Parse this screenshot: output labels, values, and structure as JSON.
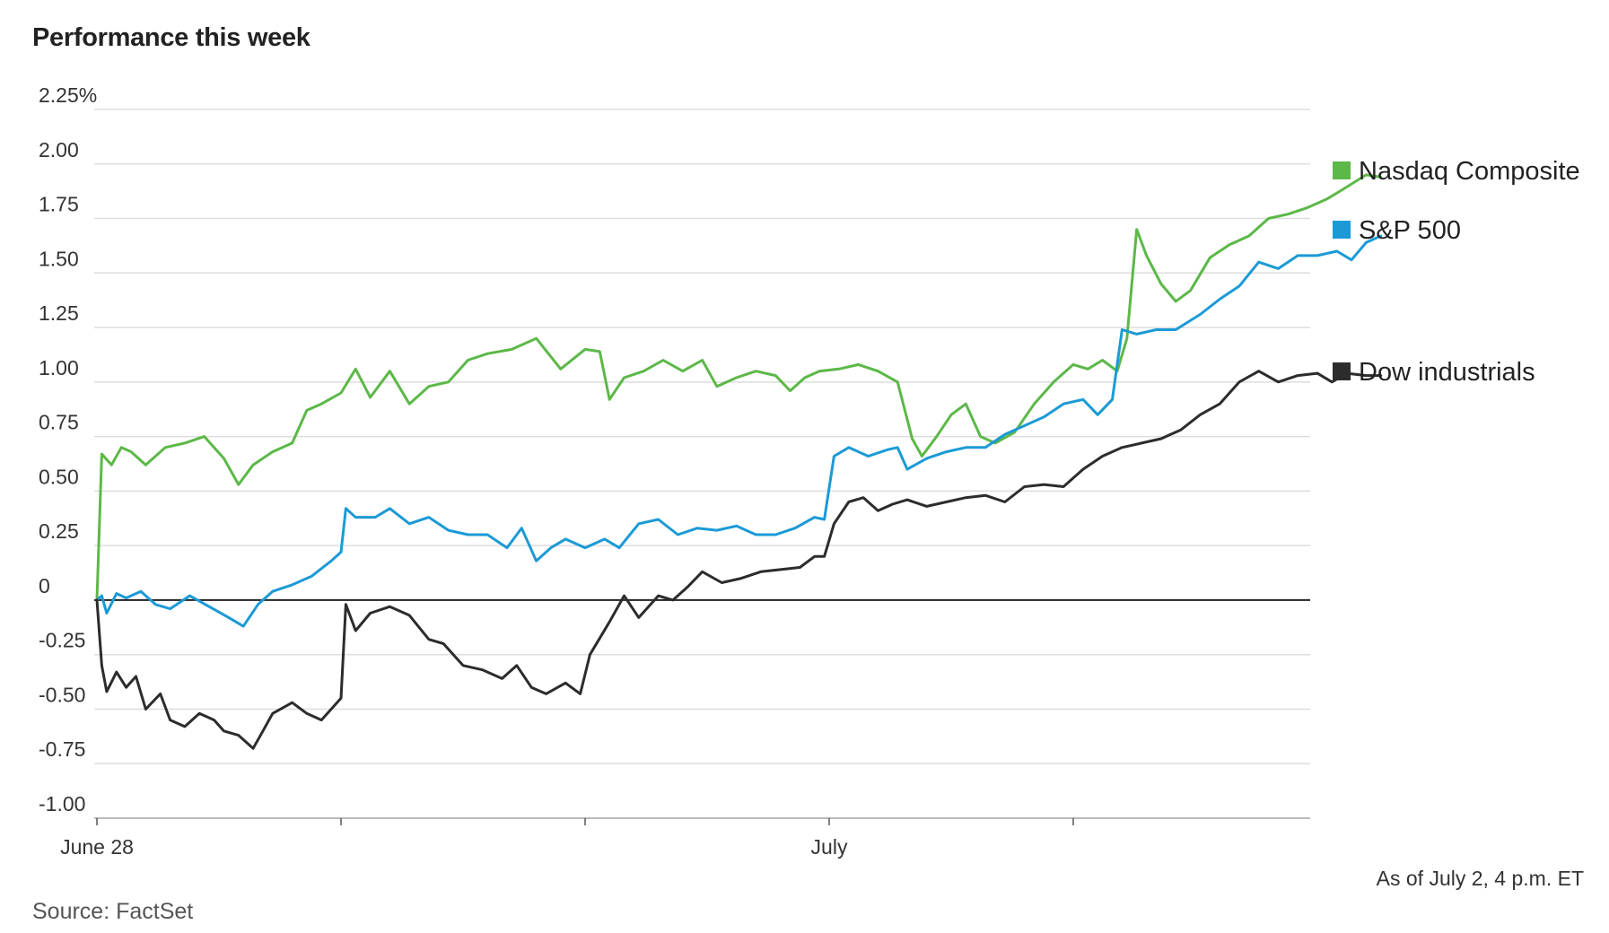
{
  "chart_data": {
    "type": "line",
    "title": "Performance this week",
    "note": "As of July 2, 4 p.m. ET",
    "source": "Source: FactSet",
    "y_ticks": [
      {
        "value": 2.25,
        "label": "2.25%"
      },
      {
        "value": 2.0,
        "label": "2.00"
      },
      {
        "value": 1.75,
        "label": "1.75"
      },
      {
        "value": 1.5,
        "label": "1.50"
      },
      {
        "value": 1.25,
        "label": "1.25"
      },
      {
        "value": 1.0,
        "label": "1.00"
      },
      {
        "value": 0.75,
        "label": "0.75"
      },
      {
        "value": 0.5,
        "label": "0.50"
      },
      {
        "value": 0.25,
        "label": "0.25"
      },
      {
        "value": 0,
        "label": "0"
      },
      {
        "value": -0.25,
        "label": "-0.25"
      },
      {
        "value": -0.5,
        "label": "-0.50"
      },
      {
        "value": -0.75,
        "label": "-0.75"
      },
      {
        "value": -1.0,
        "label": "-1.00"
      }
    ],
    "ylim": [
      -1.0,
      2.25
    ],
    "xlim": [
      0,
      5
    ],
    "x_ticks": [
      {
        "value": 0,
        "label": "June 28"
      },
      {
        "value": 1,
        "label": ""
      },
      {
        "value": 2,
        "label": ""
      },
      {
        "value": 3,
        "label": "July"
      },
      {
        "value": 4,
        "label": ""
      }
    ],
    "grid": true,
    "legend_position": "right",
    "series": [
      {
        "name": "Nasdaq Composite",
        "color": "#5cb848",
        "points": [
          [
            0,
            0
          ],
          [
            0.02,
            0.67
          ],
          [
            0.06,
            0.62
          ],
          [
            0.1,
            0.7
          ],
          [
            0.14,
            0.68
          ],
          [
            0.2,
            0.62
          ],
          [
            0.28,
            0.7
          ],
          [
            0.36,
            0.72
          ],
          [
            0.44,
            0.75
          ],
          [
            0.52,
            0.65
          ],
          [
            0.58,
            0.53
          ],
          [
            0.64,
            0.62
          ],
          [
            0.72,
            0.68
          ],
          [
            0.8,
            0.72
          ],
          [
            0.86,
            0.87
          ],
          [
            0.92,
            0.9
          ],
          [
            1.0,
            0.95
          ],
          [
            1.06,
            1.06
          ],
          [
            1.12,
            0.93
          ],
          [
            1.2,
            1.05
          ],
          [
            1.28,
            0.9
          ],
          [
            1.36,
            0.98
          ],
          [
            1.44,
            1.0
          ],
          [
            1.52,
            1.1
          ],
          [
            1.6,
            1.13
          ],
          [
            1.7,
            1.15
          ],
          [
            1.8,
            1.2
          ],
          [
            1.9,
            1.06
          ],
          [
            2.0,
            1.15
          ],
          [
            2.06,
            1.14
          ],
          [
            2.1,
            0.92
          ],
          [
            2.16,
            1.02
          ],
          [
            2.24,
            1.05
          ],
          [
            2.32,
            1.1
          ],
          [
            2.4,
            1.05
          ],
          [
            2.48,
            1.1
          ],
          [
            2.54,
            0.98
          ],
          [
            2.62,
            1.02
          ],
          [
            2.7,
            1.05
          ],
          [
            2.78,
            1.03
          ],
          [
            2.84,
            0.96
          ],
          [
            2.9,
            1.02
          ],
          [
            2.96,
            1.05
          ],
          [
            3.04,
            1.06
          ],
          [
            3.12,
            1.08
          ],
          [
            3.2,
            1.05
          ],
          [
            3.28,
            1.0
          ],
          [
            3.34,
            0.74
          ],
          [
            3.38,
            0.66
          ],
          [
            3.44,
            0.75
          ],
          [
            3.5,
            0.85
          ],
          [
            3.56,
            0.9
          ],
          [
            3.62,
            0.75
          ],
          [
            3.68,
            0.72
          ],
          [
            3.76,
            0.77
          ],
          [
            3.84,
            0.9
          ],
          [
            3.92,
            1.0
          ],
          [
            4.0,
            1.08
          ],
          [
            4.06,
            1.06
          ],
          [
            4.12,
            1.1
          ],
          [
            4.18,
            1.05
          ],
          [
            4.22,
            1.2
          ],
          [
            4.26,
            1.7
          ],
          [
            4.3,
            1.58
          ],
          [
            4.36,
            1.45
          ],
          [
            4.42,
            1.37
          ],
          [
            4.48,
            1.42
          ],
          [
            4.56,
            1.57
          ],
          [
            4.64,
            1.63
          ],
          [
            4.72,
            1.67
          ],
          [
            4.8,
            1.75
          ],
          [
            4.88,
            1.77
          ],
          [
            4.96,
            1.8
          ],
          [
            5.04,
            1.84
          ],
          [
            5.1,
            1.88
          ],
          [
            5.2,
            1.95
          ],
          [
            5.26,
            1.94
          ]
        ]
      },
      {
        "name": "S&P 500",
        "color": "#1b9ad6",
        "points": [
          [
            0,
            0
          ],
          [
            0.02,
            0.02
          ],
          [
            0.04,
            -0.06
          ],
          [
            0.08,
            0.03
          ],
          [
            0.12,
            0.01
          ],
          [
            0.18,
            0.04
          ],
          [
            0.24,
            -0.02
          ],
          [
            0.3,
            -0.04
          ],
          [
            0.38,
            0.02
          ],
          [
            0.46,
            -0.03
          ],
          [
            0.54,
            -0.08
          ],
          [
            0.6,
            -0.12
          ],
          [
            0.66,
            -0.02
          ],
          [
            0.72,
            0.04
          ],
          [
            0.8,
            0.07
          ],
          [
            0.88,
            0.11
          ],
          [
            0.96,
            0.18
          ],
          [
            1.0,
            0.22
          ],
          [
            1.02,
            0.42
          ],
          [
            1.06,
            0.38
          ],
          [
            1.14,
            0.38
          ],
          [
            1.2,
            0.42
          ],
          [
            1.28,
            0.35
          ],
          [
            1.36,
            0.38
          ],
          [
            1.44,
            0.32
          ],
          [
            1.52,
            0.3
          ],
          [
            1.6,
            0.3
          ],
          [
            1.68,
            0.24
          ],
          [
            1.74,
            0.33
          ],
          [
            1.8,
            0.18
          ],
          [
            1.86,
            0.24
          ],
          [
            1.92,
            0.28
          ],
          [
            2.0,
            0.24
          ],
          [
            2.08,
            0.28
          ],
          [
            2.14,
            0.24
          ],
          [
            2.22,
            0.35
          ],
          [
            2.3,
            0.37
          ],
          [
            2.38,
            0.3
          ],
          [
            2.46,
            0.33
          ],
          [
            2.54,
            0.32
          ],
          [
            2.62,
            0.34
          ],
          [
            2.7,
            0.3
          ],
          [
            2.78,
            0.3
          ],
          [
            2.86,
            0.33
          ],
          [
            2.94,
            0.38
          ],
          [
            2.98,
            0.37
          ],
          [
            3.02,
            0.66
          ],
          [
            3.08,
            0.7
          ],
          [
            3.16,
            0.66
          ],
          [
            3.24,
            0.69
          ],
          [
            3.28,
            0.7
          ],
          [
            3.32,
            0.6
          ],
          [
            3.4,
            0.65
          ],
          [
            3.48,
            0.68
          ],
          [
            3.56,
            0.7
          ],
          [
            3.64,
            0.7
          ],
          [
            3.72,
            0.76
          ],
          [
            3.8,
            0.8
          ],
          [
            3.88,
            0.84
          ],
          [
            3.96,
            0.9
          ],
          [
            4.04,
            0.92
          ],
          [
            4.1,
            0.85
          ],
          [
            4.16,
            0.92
          ],
          [
            4.2,
            1.24
          ],
          [
            4.26,
            1.22
          ],
          [
            4.34,
            1.24
          ],
          [
            4.42,
            1.24
          ],
          [
            4.52,
            1.31
          ],
          [
            4.6,
            1.38
          ],
          [
            4.68,
            1.44
          ],
          [
            4.76,
            1.55
          ],
          [
            4.84,
            1.52
          ],
          [
            4.92,
            1.58
          ],
          [
            5.0,
            1.58
          ],
          [
            5.08,
            1.6
          ],
          [
            5.14,
            1.56
          ],
          [
            5.2,
            1.64
          ],
          [
            5.26,
            1.67
          ]
        ]
      },
      {
        "name": "Dow industrials",
        "color": "#2c2c2c",
        "points": [
          [
            0,
            0
          ],
          [
            0.02,
            -0.3
          ],
          [
            0.04,
            -0.42
          ],
          [
            0.08,
            -0.33
          ],
          [
            0.12,
            -0.4
          ],
          [
            0.16,
            -0.35
          ],
          [
            0.2,
            -0.5
          ],
          [
            0.26,
            -0.43
          ],
          [
            0.3,
            -0.55
          ],
          [
            0.36,
            -0.58
          ],
          [
            0.42,
            -0.52
          ],
          [
            0.48,
            -0.55
          ],
          [
            0.52,
            -0.6
          ],
          [
            0.58,
            -0.62
          ],
          [
            0.64,
            -0.68
          ],
          [
            0.68,
            -0.6
          ],
          [
            0.72,
            -0.52
          ],
          [
            0.8,
            -0.47
          ],
          [
            0.86,
            -0.52
          ],
          [
            0.92,
            -0.55
          ],
          [
            1.0,
            -0.45
          ],
          [
            1.02,
            -0.02
          ],
          [
            1.06,
            -0.14
          ],
          [
            1.12,
            -0.06
          ],
          [
            1.2,
            -0.03
          ],
          [
            1.28,
            -0.07
          ],
          [
            1.36,
            -0.18
          ],
          [
            1.42,
            -0.2
          ],
          [
            1.5,
            -0.3
          ],
          [
            1.58,
            -0.32
          ],
          [
            1.66,
            -0.36
          ],
          [
            1.72,
            -0.3
          ],
          [
            1.78,
            -0.4
          ],
          [
            1.84,
            -0.43
          ],
          [
            1.92,
            -0.38
          ],
          [
            1.98,
            -0.43
          ],
          [
            2.02,
            -0.25
          ],
          [
            2.1,
            -0.1
          ],
          [
            2.16,
            0.02
          ],
          [
            2.22,
            -0.08
          ],
          [
            2.3,
            0.02
          ],
          [
            2.36,
            0.0
          ],
          [
            2.42,
            0.06
          ],
          [
            2.48,
            0.13
          ],
          [
            2.56,
            0.08
          ],
          [
            2.64,
            0.1
          ],
          [
            2.72,
            0.13
          ],
          [
            2.8,
            0.14
          ],
          [
            2.88,
            0.15
          ],
          [
            2.94,
            0.2
          ],
          [
            2.98,
            0.2
          ],
          [
            3.02,
            0.35
          ],
          [
            3.08,
            0.45
          ],
          [
            3.14,
            0.47
          ],
          [
            3.2,
            0.41
          ],
          [
            3.26,
            0.44
          ],
          [
            3.32,
            0.46
          ],
          [
            3.4,
            0.43
          ],
          [
            3.48,
            0.45
          ],
          [
            3.56,
            0.47
          ],
          [
            3.64,
            0.48
          ],
          [
            3.72,
            0.45
          ],
          [
            3.8,
            0.52
          ],
          [
            3.88,
            0.53
          ],
          [
            3.96,
            0.52
          ],
          [
            4.04,
            0.6
          ],
          [
            4.12,
            0.66
          ],
          [
            4.2,
            0.7
          ],
          [
            4.28,
            0.72
          ],
          [
            4.36,
            0.74
          ],
          [
            4.44,
            0.78
          ],
          [
            4.52,
            0.85
          ],
          [
            4.6,
            0.9
          ],
          [
            4.68,
            1.0
          ],
          [
            4.76,
            1.05
          ],
          [
            4.84,
            1.0
          ],
          [
            4.92,
            1.03
          ],
          [
            5.0,
            1.04
          ],
          [
            5.06,
            1.0
          ],
          [
            5.12,
            1.04
          ],
          [
            5.2,
            1.03
          ],
          [
            5.26,
            1.03
          ]
        ]
      }
    ]
  }
}
